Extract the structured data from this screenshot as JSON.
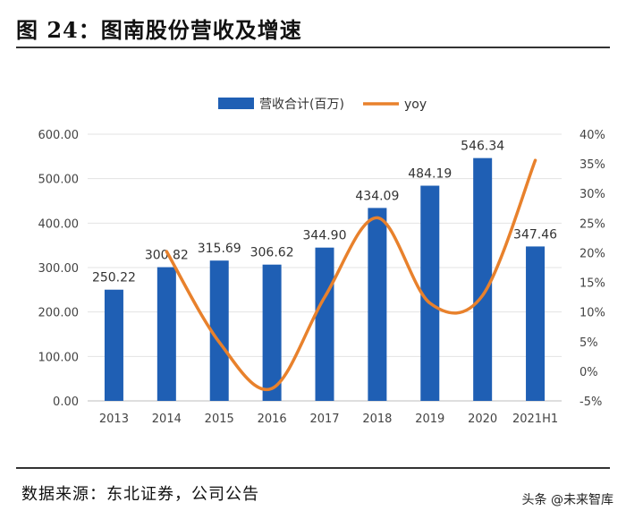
{
  "figure": {
    "title": "图  24：图南股份营收及增速",
    "source": "数据来源：东北证券，公司公告",
    "watermark": "头条 @未来智库"
  },
  "chart_data": {
    "type": "bar+line",
    "categories": [
      "2013",
      "2014",
      "2015",
      "2016",
      "2017",
      "2018",
      "2019",
      "2020",
      "2021H1"
    ],
    "series": [
      {
        "name": "营收合计(百万)",
        "type": "bar",
        "axis": "left",
        "color": "#1f5fb4",
        "values": [
          250.22,
          300.82,
          315.69,
          306.62,
          344.9,
          434.09,
          484.19,
          546.34,
          347.46
        ],
        "labels": [
          "250.22",
          "300.82",
          "315.69",
          "306.62",
          "344.90",
          "434.09",
          "484.19",
          "546.34",
          "347.46"
        ]
      },
      {
        "name": "yoy",
        "type": "line",
        "axis": "right",
        "color": "#e8812c",
        "smooth": true,
        "values": [
          null,
          20.2,
          4.9,
          -2.9,
          12.5,
          25.9,
          11.5,
          12.8,
          35.6
        ]
      }
    ],
    "y_left": {
      "min": 0,
      "max": 600,
      "step": 100,
      "tick_labels": [
        "0.00",
        "100.00",
        "200.00",
        "300.00",
        "400.00",
        "500.00",
        "600.00"
      ]
    },
    "y_right": {
      "min": -5,
      "max": 40,
      "step": 5,
      "tick_labels": [
        "-5%",
        "0%",
        "5%",
        "10%",
        "15%",
        "20%",
        "25%",
        "30%",
        "35%",
        "40%"
      ]
    },
    "legend": {
      "position": "top-center",
      "entries": [
        "营收合计(百万)",
        "yoy"
      ]
    },
    "grid": "horizontal"
  }
}
